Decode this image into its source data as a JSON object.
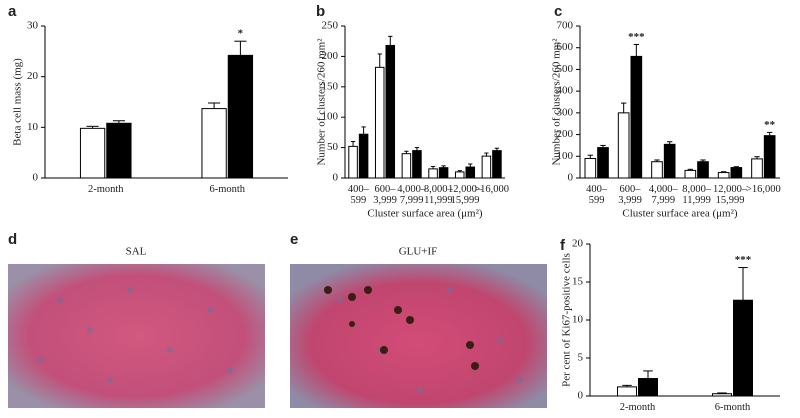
{
  "chart_data": [
    {
      "type": "bar",
      "panel": "a",
      "ylabel": "Beta cell mass (mg)",
      "categories": [
        "2-month",
        "6-month"
      ],
      "series": [
        {
          "color": "#ffffff",
          "values": [
            9.8,
            13.7
          ],
          "errors": [
            0.4,
            1.1
          ],
          "significance": [
            null,
            null
          ]
        },
        {
          "color": "#000000",
          "values": [
            10.8,
            24.2
          ],
          "errors": [
            0.5,
            2.8
          ],
          "significance": [
            null,
            "*"
          ]
        }
      ],
      "ylim": [
        0,
        30
      ],
      "yticks": [
        0,
        10,
        20,
        30
      ]
    },
    {
      "type": "bar",
      "panel": "b",
      "ylabel": "Number of clusters/260 mm²",
      "xlabel": "Cluster surface area (μm²)",
      "categories": [
        "400–\n599",
        "600–\n3,999",
        "4,000–\n7,999",
        "8,000–\n11,999",
        "12,000–\n15,999",
        ">16,000"
      ],
      "series": [
        {
          "color": "#ffffff",
          "values": [
            52,
            182,
            40,
            15,
            10,
            36
          ],
          "errors": [
            8,
            22,
            4,
            4,
            2,
            5
          ],
          "significance": [
            null,
            null,
            null,
            null,
            null,
            null
          ]
        },
        {
          "color": "#000000",
          "values": [
            72,
            218,
            45,
            17,
            18,
            45
          ],
          "errors": [
            12,
            15,
            5,
            3,
            5,
            4
          ],
          "significance": [
            null,
            null,
            null,
            null,
            null,
            null
          ]
        }
      ],
      "ylim": [
        0,
        250
      ],
      "yticks": [
        0,
        50,
        100,
        150,
        200,
        250
      ]
    },
    {
      "type": "bar",
      "panel": "c",
      "ylabel": "Number of clusters/260 mm²",
      "xlabel": "Cluster surface area (μm²)",
      "categories": [
        "400–\n599",
        "600–\n3,999",
        "4,000–\n7,999",
        "8,000–\n11,999",
        "12,000–\n15,999",
        ">16,000"
      ],
      "series": [
        {
          "color": "#ffffff",
          "values": [
            90,
            300,
            75,
            35,
            25,
            88
          ],
          "errors": [
            15,
            45,
            8,
            5,
            4,
            10
          ],
          "significance": [
            null,
            null,
            null,
            null,
            null,
            null
          ]
        },
        {
          "color": "#000000",
          "values": [
            140,
            560,
            155,
            75,
            48,
            195
          ],
          "errors": [
            10,
            55,
            12,
            8,
            4,
            15
          ],
          "significance": [
            null,
            "***",
            null,
            null,
            null,
            "**"
          ]
        }
      ],
      "ylim": [
        0,
        700
      ],
      "yticks": [
        0,
        100,
        200,
        300,
        400,
        500,
        600,
        700
      ]
    },
    {
      "type": "bar",
      "panel": "f",
      "ylabel": "Per cent of Ki67-positive cells",
      "categories": [
        "2-month",
        "6-month"
      ],
      "series": [
        {
          "color": "#ffffff",
          "values": [
            1.2,
            0.3
          ],
          "errors": [
            0.2,
            0.1
          ],
          "significance": [
            null,
            null
          ]
        },
        {
          "color": "#000000",
          "values": [
            2.3,
            12.6
          ],
          "errors": [
            1.0,
            4.3
          ],
          "significance": [
            null,
            "***"
          ]
        }
      ],
      "ylim": [
        0,
        20
      ],
      "yticks": [
        0,
        5,
        10,
        15,
        20
      ]
    }
  ],
  "images": [
    {
      "panel": "d",
      "title": "SAL"
    },
    {
      "panel": "e",
      "title": "GLU+IF"
    }
  ]
}
